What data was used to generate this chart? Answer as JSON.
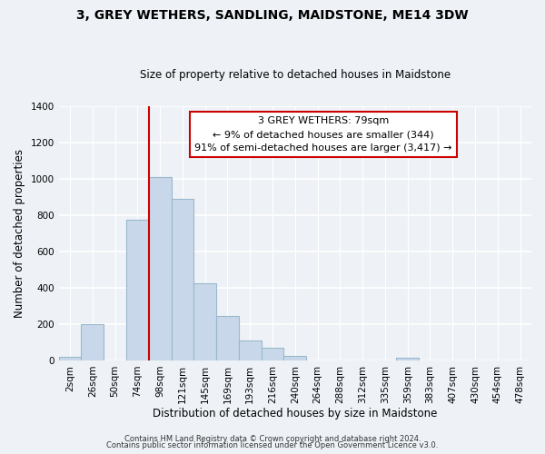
{
  "title": "3, GREY WETHERS, SANDLING, MAIDSTONE, ME14 3DW",
  "subtitle": "Size of property relative to detached houses in Maidstone",
  "xlabel": "Distribution of detached houses by size in Maidstone",
  "ylabel": "Number of detached properties",
  "bar_labels": [
    "2sqm",
    "26sqm",
    "50sqm",
    "74sqm",
    "98sqm",
    "121sqm",
    "145sqm",
    "169sqm",
    "193sqm",
    "216sqm",
    "240sqm",
    "264sqm",
    "288sqm",
    "312sqm",
    "335sqm",
    "359sqm",
    "383sqm",
    "407sqm",
    "430sqm",
    "454sqm",
    "478sqm"
  ],
  "bar_values": [
    20,
    200,
    0,
    775,
    1010,
    890,
    425,
    245,
    110,
    70,
    25,
    0,
    0,
    0,
    0,
    15,
    0,
    0,
    0,
    0,
    0
  ],
  "bar_color": "#c8d8ea",
  "bar_edge_color": "#9ab8cc",
  "vline_x": 3.5,
  "vline_color": "#cc0000",
  "annotation_title": "3 GREY WETHERS: 79sqm",
  "annotation_line1": "← 9% of detached houses are smaller (344)",
  "annotation_line2": "91% of semi-detached houses are larger (3,417) →",
  "annotation_box_facecolor": "#ffffff",
  "annotation_box_edgecolor": "#cc0000",
  "ylim": [
    0,
    1400
  ],
  "yticks": [
    0,
    200,
    400,
    600,
    800,
    1000,
    1200,
    1400
  ],
  "footer1": "Contains HM Land Registry data © Crown copyright and database right 2024.",
  "footer2": "Contains public sector information licensed under the Open Government Licence v3.0.",
  "bg_color": "#eef2f7",
  "grid_color": "#ffffff",
  "title_fontsize": 10,
  "subtitle_fontsize": 8.5,
  "ylabel_fontsize": 8.5,
  "xlabel_fontsize": 8.5,
  "tick_fontsize": 7.5,
  "annot_fontsize": 8,
  "footer_fontsize": 6
}
